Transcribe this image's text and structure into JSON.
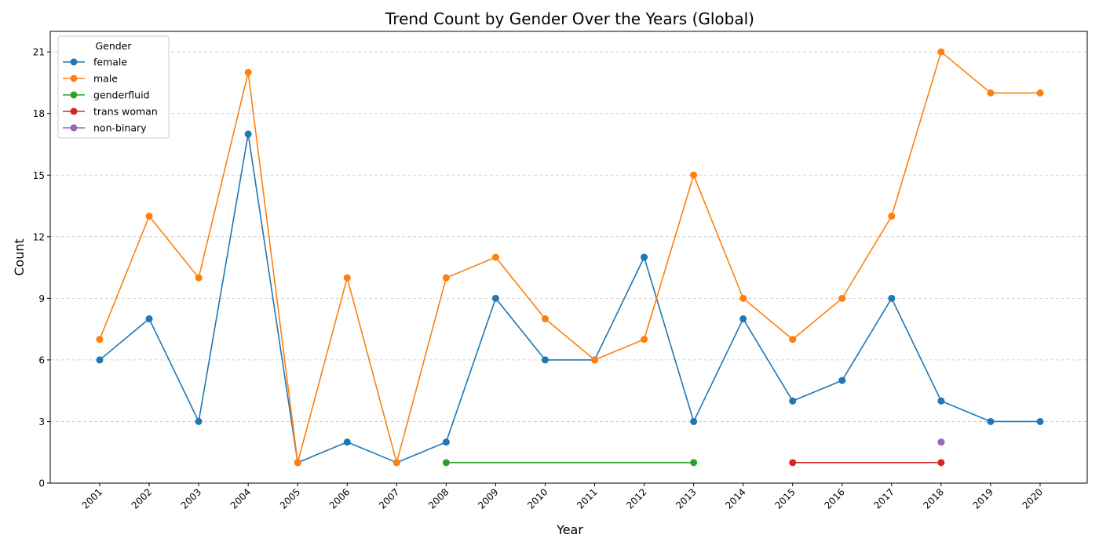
{
  "chart_data": {
    "type": "line",
    "title": "Trend Count by Gender Over the Years (Global)",
    "xlabel": "Year",
    "ylabel": "Count",
    "x": [
      "2001",
      "2002",
      "2003",
      "2004",
      "2005",
      "2006",
      "2007",
      "2008",
      "2009",
      "2010",
      "2011",
      "2012",
      "2013",
      "2014",
      "2015",
      "2016",
      "2017",
      "2018",
      "2019",
      "2020"
    ],
    "yticks": [
      0,
      3,
      6,
      9,
      12,
      15,
      18,
      21
    ],
    "ylim": [
      0,
      22
    ],
    "grid": "y, dashed",
    "legend": {
      "title": "Gender",
      "placement": "top-left"
    },
    "series": [
      {
        "name": "female",
        "color": "#1f77b4",
        "points": [
          [
            "2001",
            6
          ],
          [
            "2002",
            8
          ],
          [
            "2003",
            3
          ],
          [
            "2004",
            17
          ],
          [
            "2005",
            1
          ],
          [
            "2006",
            2
          ],
          [
            "2007",
            1
          ],
          [
            "2008",
            2
          ],
          [
            "2009",
            9
          ],
          [
            "2010",
            6
          ],
          [
            "2011",
            6
          ],
          [
            "2012",
            11
          ],
          [
            "2013",
            3
          ],
          [
            "2014",
            8
          ],
          [
            "2015",
            4
          ],
          [
            "2016",
            5
          ],
          [
            "2017",
            9
          ],
          [
            "2018",
            4
          ],
          [
            "2019",
            3
          ],
          [
            "2020",
            3
          ]
        ]
      },
      {
        "name": "male",
        "color": "#ff7f0e",
        "points": [
          [
            "2001",
            7
          ],
          [
            "2002",
            13
          ],
          [
            "2003",
            10
          ],
          [
            "2004",
            20
          ],
          [
            "2005",
            1
          ],
          [
            "2006",
            10
          ],
          [
            "2007",
            1
          ],
          [
            "2008",
            10
          ],
          [
            "2009",
            11
          ],
          [
            "2010",
            8
          ],
          [
            "2011",
            6
          ],
          [
            "2012",
            7
          ],
          [
            "2013",
            15
          ],
          [
            "2014",
            9
          ],
          [
            "2015",
            7
          ],
          [
            "2016",
            9
          ],
          [
            "2017",
            13
          ],
          [
            "2018",
            21
          ],
          [
            "2019",
            19
          ],
          [
            "2020",
            19
          ]
        ]
      },
      {
        "name": "genderfluid",
        "color": "#2ca02c",
        "points": [
          [
            "2008",
            1
          ],
          [
            "2013",
            1
          ]
        ]
      },
      {
        "name": "trans woman",
        "color": "#d62728",
        "points": [
          [
            "2015",
            1
          ],
          [
            "2018",
            1
          ]
        ]
      },
      {
        "name": "non-binary",
        "color": "#9467bd",
        "points": [
          [
            "2018",
            2
          ]
        ]
      }
    ]
  }
}
